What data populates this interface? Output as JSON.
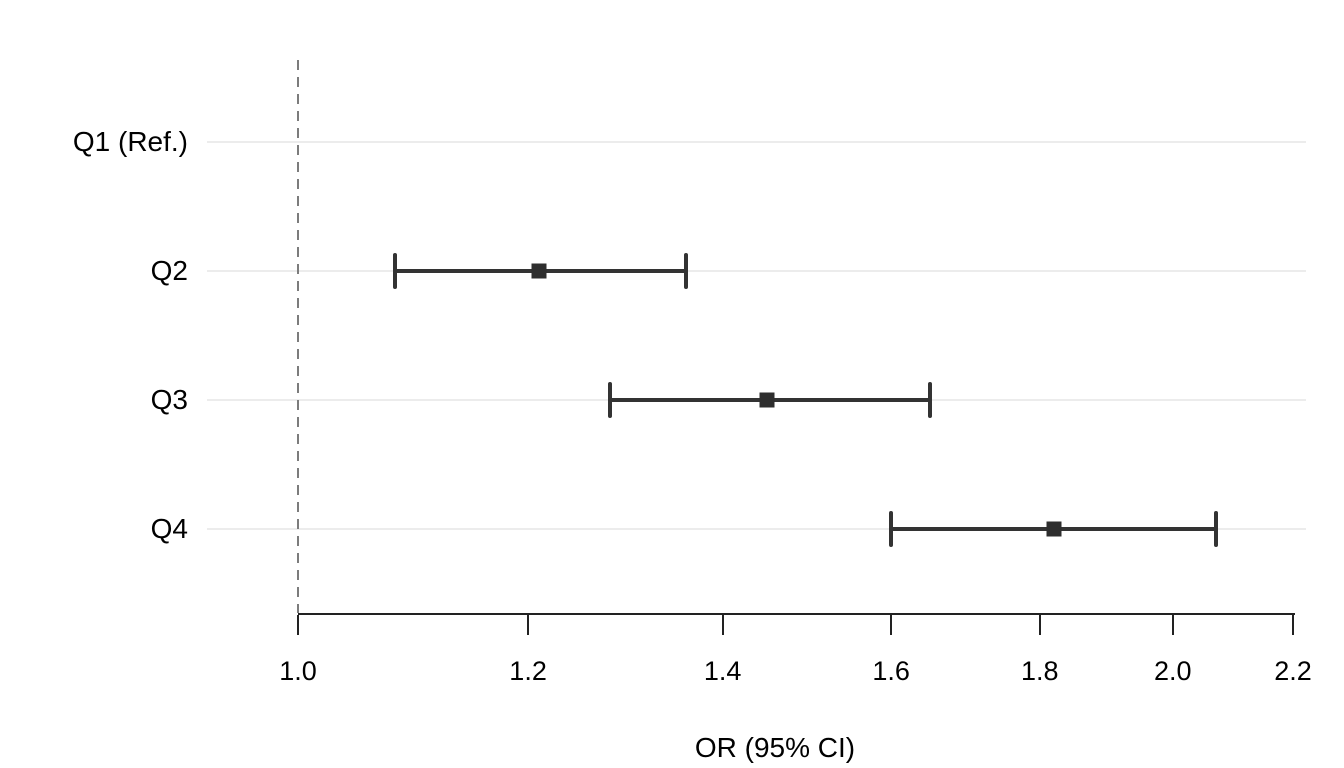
{
  "chart_data": {
    "type": "scatter",
    "subtype": "forest-plot",
    "title": "",
    "xlabel": "OR (95% CI)",
    "ylabel": "",
    "x_scale": "log",
    "xlim": [
      1.0,
      2.2
    ],
    "x_ticks": [
      1.0,
      1.2,
      1.4,
      1.6,
      1.8,
      2.0,
      2.2
    ],
    "x_tick_labels": [
      "1.0",
      "1.2",
      "1.4",
      "1.6",
      "1.8",
      "2.0",
      "2.2"
    ],
    "reference_line_x": 1.0,
    "grid": "horizontal-row-lines",
    "legend": "none",
    "categories": [
      "Q1 (Ref.)",
      "Q2",
      "Q3",
      "Q4"
    ],
    "rows": [
      {
        "label": "Q1 (Ref.)",
        "or": null,
        "ci_low": null,
        "ci_high": null,
        "reference": true
      },
      {
        "label": "Q2",
        "or": 1.21,
        "ci_low": 1.08,
        "ci_high": 1.36,
        "reference": false
      },
      {
        "label": "Q3",
        "or": 1.45,
        "ci_low": 1.28,
        "ci_high": 1.65,
        "reference": false
      },
      {
        "label": "Q4",
        "or": 1.82,
        "ci_low": 1.6,
        "ci_high": 2.07,
        "reference": false
      }
    ],
    "colors": {
      "background": "#ffffff",
      "marker": "#2e2e2e",
      "ci": "#333333",
      "grid": "#ececec",
      "reference_line": "#7c7c7c",
      "axis": "#222222",
      "text": "#000000"
    }
  }
}
